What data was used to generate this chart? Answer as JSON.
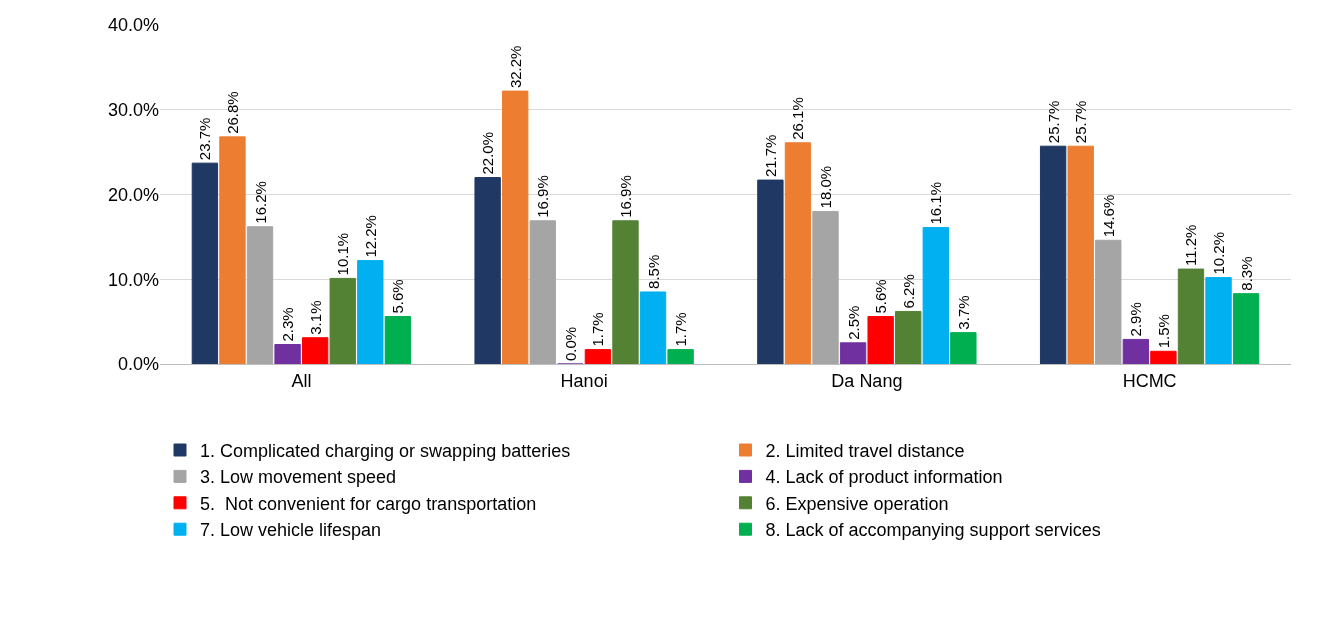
{
  "chart_data": {
    "type": "bar",
    "categories": [
      "All",
      "Hanoi",
      "Da Nang",
      "HCMC"
    ],
    "series": [
      {
        "name": "1. Complicated charging or swapping batteries",
        "color": "#1f3864",
        "values": [
          23.7,
          22.0,
          21.7,
          25.7
        ],
        "value_labels": [
          "23.7%",
          "22.0%",
          "21.7%",
          "25.7%"
        ]
      },
      {
        "name": "2. Limited travel distance",
        "color": "#ed7d31",
        "values": [
          26.8,
          32.2,
          26.1,
          25.7
        ],
        "value_labels": [
          "26.8%",
          "32.2%",
          "26.1%",
          "25.7%"
        ]
      },
      {
        "name": "3. Low movement speed",
        "color": "#a5a5a5",
        "values": [
          16.2,
          16.9,
          18.0,
          14.6
        ],
        "value_labels": [
          "16.2%",
          "16.9%",
          "18.0%",
          "14.6%"
        ]
      },
      {
        "name": "4. Lack of product information",
        "color": "#7030a0",
        "values": [
          2.3,
          0.0,
          2.5,
          2.9
        ],
        "value_labels": [
          "2.3%",
          "0.0%",
          "2.5%",
          "2.9%"
        ]
      },
      {
        "name": "5.  Not convenient for cargo transportation",
        "color": "#ff0000",
        "values": [
          3.1,
          1.7,
          5.6,
          1.5
        ],
        "value_labels": [
          "3.1%",
          "1.7%",
          "5.6%",
          "1.5%"
        ]
      },
      {
        "name": "6. Expensive operation",
        "color": "#548235",
        "values": [
          10.1,
          16.9,
          6.2,
          11.2
        ],
        "value_labels": [
          "10.1%",
          "16.9%",
          "6.2%",
          "11.2%"
        ]
      },
      {
        "name": "7. Low vehicle lifespan",
        "color": "#00b0f0",
        "values": [
          12.2,
          8.5,
          16.1,
          10.2
        ],
        "value_labels": [
          "12.2%",
          "8.5%",
          "16.1%",
          "10.2%"
        ]
      },
      {
        "name": "8. Lack of accompanying support services",
        "color": "#00b050",
        "values": [
          5.6,
          1.7,
          3.7,
          8.3
        ],
        "value_labels": [
          "5.6%",
          "1.7%",
          "3.7%",
          "8.3%"
        ]
      }
    ],
    "ylim": [
      0,
      40
    ],
    "yticks": [
      {
        "value": 0,
        "label": "0.0%"
      },
      {
        "value": 10,
        "label": "10.0%"
      },
      {
        "value": 20,
        "label": "20.0%"
      },
      {
        "value": 30,
        "label": "30.0%"
      },
      {
        "value": 40,
        "label": "40.0%"
      }
    ],
    "grid": "y",
    "legend": "bottom"
  }
}
